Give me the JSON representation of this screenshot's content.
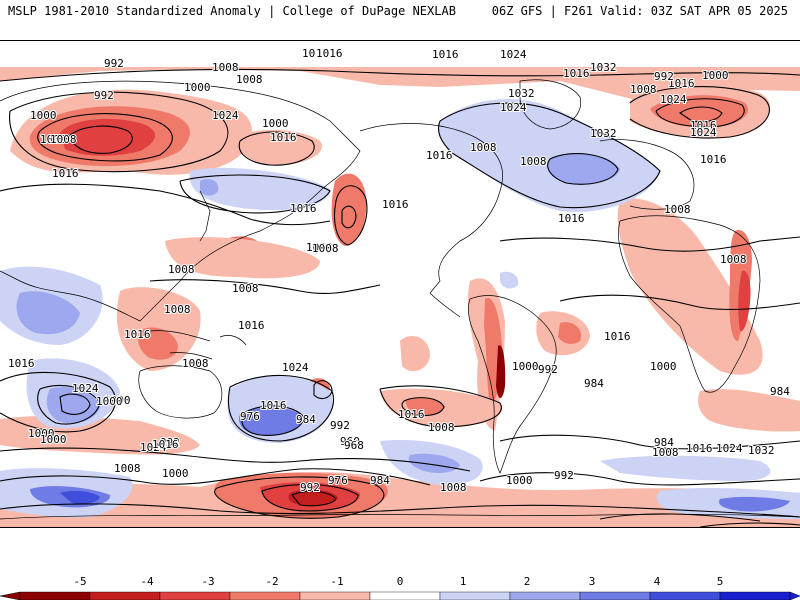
{
  "header": {
    "left": "MSLP 1981-2010 Standardized Anomaly | College of DuPage NEXLAB",
    "right": "06Z GFS | F261 Valid: 03Z SAT APR 05 2025"
  },
  "colors": {
    "neg5": "#8b0000",
    "neg4": "#c41e1e",
    "neg3": "#e04040",
    "neg2": "#f07a6a",
    "neg1": "#f9b9aa",
    "zero": "#ffffff",
    "pos1": "#ccd3f5",
    "pos2": "#9ea8ef",
    "pos3": "#6f7ce6",
    "pos4": "#3f4edb",
    "pos5": "#1a1fd0",
    "isobar": "#000000",
    "coast": "#000000"
  },
  "colorbar": {
    "ticks": [
      "-5",
      "-4",
      "-3",
      "-2",
      "-1",
      "0",
      "1",
      "2",
      "3",
      "4",
      "5"
    ]
  },
  "isobar_labels": [
    "1008",
    "1016",
    "1008",
    "992",
    "992",
    "1000",
    "1000",
    "1008",
    "1008",
    "1016",
    "1016",
    "1024",
    "1000",
    "1016",
    "1016",
    "1016",
    "1016",
    "1024",
    "1032",
    "1008",
    "1024",
    "1032",
    "1024",
    "1032",
    "1008",
    "1016",
    "1016",
    "1024",
    "1016",
    "992",
    "1000",
    "1008",
    "1016",
    "1016",
    "1008",
    "1008",
    "1008",
    "1008",
    "1016",
    "1008",
    "1008",
    "1016",
    "1024",
    "1000",
    "1016",
    "1024",
    "1016",
    "1008",
    "1000",
    "1016",
    "1000",
    "992",
    "984",
    "1000",
    "976",
    "984",
    "992",
    "960",
    "968",
    "992",
    "976",
    "984",
    "1000",
    "1008",
    "1008",
    "1000",
    "992",
    "984",
    "1008",
    "1016",
    "1024",
    "1032",
    "984",
    "1000",
    "992",
    "1024",
    "1016",
    "1016",
    "1008",
    "1016",
    "1000",
    "1008"
  ]
}
